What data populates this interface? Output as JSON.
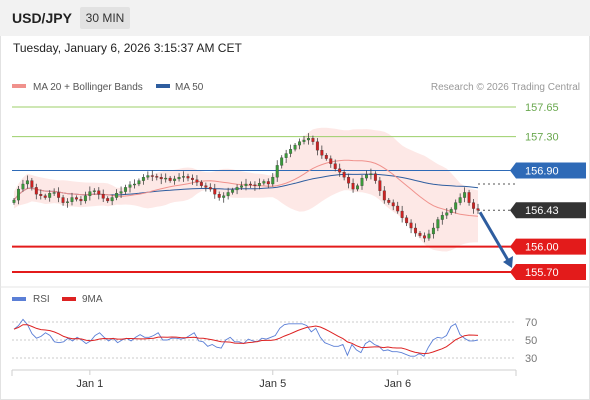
{
  "header": {
    "symbol": "USD/JPY",
    "timeframe": "30 MIN",
    "timestamp": "Tuesday, January 6, 2026 3:15:37 AM CET"
  },
  "legend": {
    "ma20_label": "MA 20 + Bollinger Bands",
    "ma20_color": "#f0918c",
    "ma50_label": "MA 50",
    "ma50_color": "#2e5d9f",
    "credit": "Research © 2026 Trading Central"
  },
  "levels": [
    {
      "value": 157.65,
      "label": "157.65",
      "kind": "resistance-target"
    },
    {
      "value": 157.3,
      "label": "157.30",
      "kind": "resistance-target"
    },
    {
      "value": 156.9,
      "label": "156.90",
      "kind": "pivot"
    },
    {
      "value": 156.43,
      "label": "156.43",
      "kind": "last-price"
    },
    {
      "value": 156.0,
      "label": "156.00",
      "kind": "support-target"
    },
    {
      "value": 155.7,
      "label": "155.70",
      "kind": "support-target"
    }
  ],
  "rsi": {
    "legend_rsi": "RSI",
    "legend_ma": "9MA",
    "rsi_color": "#5b7fd6",
    "ma_color": "#dd2222",
    "ticks": [
      "70",
      "50",
      "30"
    ],
    "tick_values": [
      70,
      50,
      30
    ]
  },
  "x_axis": {
    "labels": [
      "Jan 1",
      "Jan 5",
      "Jan 6"
    ],
    "label_positions_bar_index": [
      17,
      58,
      86
    ]
  },
  "colors": {
    "up": "#3a9a3a",
    "down": "#cc2222",
    "pivot_line": "#2e6ab7",
    "support_line": "#e31b1b",
    "resistance_line": "#9ccf6a",
    "bollinger_fill": "#fde2e0",
    "last_tag": "#333333",
    "arrow": "#2e5d9f"
  },
  "chart_data": {
    "type": "candlestick",
    "instrument": "USD/JPY",
    "interval": "30 MIN",
    "y_range": [
      155.65,
      157.72
    ],
    "forecast_arrow": {
      "from": 156.43,
      "to": 155.7
    },
    "series_hint": "approximate price path read from the image",
    "close": [
      156.55,
      156.68,
      156.74,
      156.78,
      156.7,
      156.62,
      156.6,
      156.58,
      156.63,
      156.64,
      156.58,
      156.52,
      156.53,
      156.58,
      156.56,
      156.54,
      156.6,
      156.65,
      156.66,
      156.62,
      156.57,
      156.54,
      156.58,
      156.63,
      156.65,
      156.7,
      156.73,
      156.74,
      156.78,
      156.82,
      156.84,
      156.83,
      156.82,
      156.8,
      156.81,
      156.78,
      156.8,
      156.82,
      156.83,
      156.81,
      156.79,
      156.76,
      156.72,
      156.7,
      156.68,
      156.62,
      156.58,
      156.6,
      156.64,
      156.67,
      156.7,
      156.72,
      156.74,
      156.73,
      156.72,
      156.75,
      156.77,
      156.74,
      156.82,
      156.96,
      157.05,
      157.1,
      157.15,
      157.2,
      157.24,
      157.26,
      157.28,
      157.24,
      157.14,
      157.08,
      157.04,
      156.98,
      156.92,
      156.88,
      156.82,
      156.75,
      156.68,
      156.72,
      156.81,
      156.85,
      156.86,
      156.78,
      156.66,
      156.55,
      156.52,
      156.48,
      156.42,
      156.34,
      156.28,
      156.22,
      156.16,
      156.13,
      156.1,
      156.15,
      156.22,
      156.32,
      156.37,
      156.4,
      156.44,
      156.52,
      156.58,
      156.64,
      156.52,
      156.45,
      156.43
    ],
    "rsi": [
      62,
      66,
      73,
      67,
      57,
      52,
      54,
      58,
      55,
      48,
      47,
      48,
      52,
      49,
      53,
      50,
      46,
      49,
      55,
      58,
      53,
      49,
      52,
      47,
      50,
      52,
      49,
      53,
      56,
      53,
      53,
      55,
      58,
      50,
      50,
      52,
      52,
      51,
      52,
      55,
      58,
      49,
      48,
      43,
      45,
      42,
      41,
      50,
      53,
      48,
      48,
      46,
      51,
      49,
      48,
      52,
      51,
      53,
      55,
      63,
      67,
      68,
      68,
      68,
      68,
      66,
      59,
      63,
      53,
      47,
      45,
      43,
      43,
      45,
      33,
      45,
      39,
      36,
      46,
      49,
      45,
      43,
      38,
      39,
      37,
      37,
      36,
      34,
      32,
      32,
      35,
      32,
      42,
      50,
      53,
      52,
      55,
      65,
      68,
      56,
      52,
      49,
      49,
      50
    ]
  }
}
